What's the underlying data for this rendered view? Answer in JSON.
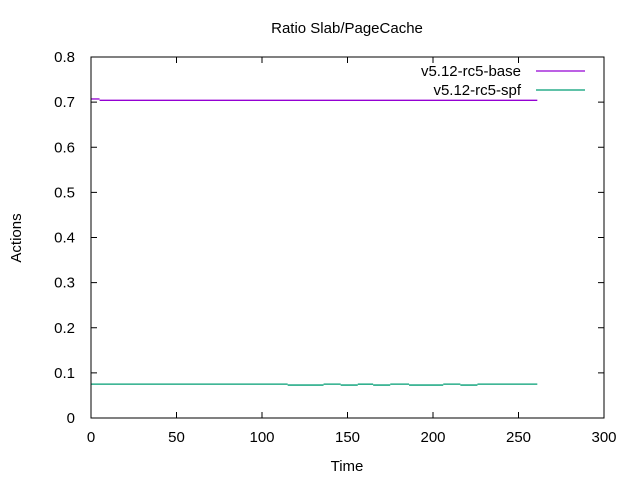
{
  "chart_data": {
    "type": "line",
    "title": "Ratio Slab/PageCache",
    "xlabel": "Time",
    "ylabel": "Actions",
    "xlim": [
      0,
      300
    ],
    "ylim": [
      0,
      0.8
    ],
    "xticks": [
      0,
      50,
      100,
      150,
      200,
      250,
      300
    ],
    "yticks": [
      0,
      0.1,
      0.2,
      0.3,
      0.4,
      0.5,
      0.6,
      0.7,
      0.8
    ],
    "xtick_labels": [
      "0",
      "50",
      "100",
      "150",
      "200",
      "250",
      "300"
    ],
    "ytick_labels": [
      "0",
      "0.1",
      "0.2",
      "0.3",
      "0.4",
      "0.5",
      "0.6",
      "0.7",
      "0.8"
    ],
    "grid": false,
    "legend_position": "top-right",
    "series": [
      {
        "name": "v5.12-rc5-base",
        "color": "#9400d3",
        "segments": [
          {
            "x0": 0,
            "x1": 5,
            "y": 0.707
          },
          {
            "x0": 5,
            "x1": 261,
            "y": 0.704
          }
        ]
      },
      {
        "name": "v5.12-rc5-spf",
        "color": "#009e73",
        "segments": [
          {
            "x0": 0,
            "x1": 115,
            "y": 0.075
          },
          {
            "x0": 115,
            "x1": 136,
            "y": 0.073
          },
          {
            "x0": 136,
            "x1": 146,
            "y": 0.075
          },
          {
            "x0": 146,
            "x1": 156,
            "y": 0.073
          },
          {
            "x0": 156,
            "x1": 165,
            "y": 0.075
          },
          {
            "x0": 165,
            "x1": 175,
            "y": 0.073
          },
          {
            "x0": 175,
            "x1": 186,
            "y": 0.075
          },
          {
            "x0": 186,
            "x1": 206,
            "y": 0.073
          },
          {
            "x0": 206,
            "x1": 216,
            "y": 0.075
          },
          {
            "x0": 216,
            "x1": 226,
            "y": 0.073
          },
          {
            "x0": 226,
            "x1": 261,
            "y": 0.075
          }
        ]
      }
    ]
  }
}
